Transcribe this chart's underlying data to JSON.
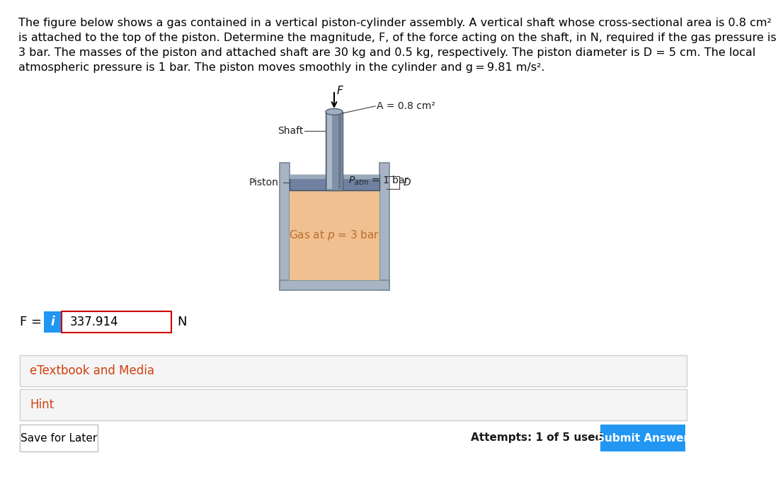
{
  "problem_text_line1": "The figure below shows a gas contained in a vertical piston-cylinder assembly. A vertical shaft whose cross-sectional area is 0.8 cm²",
  "problem_text_line2": "is attached to the top of the piston. Determine the magnitude, F, of the force acting on the shaft, in N, required if the gas pressure is",
  "problem_text_line3": "3 bar. The masses of the piston and attached shaft are 30 kg and 0.5 kg, respectively. The piston diameter is D = 5 cm. The local",
  "problem_text_line4": "atmospheric pressure is 1 bar. The piston moves smoothly in the cylinder and g = 9.81 m/s².",
  "answer_value": "337.914",
  "answer_label": "F =",
  "answer_unit": "N",
  "etextbook_label": "eTextbook and Media",
  "hint_label": "Hint",
  "save_label": "Save for Later",
  "attempts_label": "Attempts: 1 of 5 used",
  "submit_label": "Submit Answer",
  "colors": {
    "background": "#ffffff",
    "problem_text": "#000000",
    "cylinder_wall": "#a8b4c4",
    "cylinder_wall_edge": "#7a8898",
    "piston_dark": "#7080a0",
    "piston_light": "#9aaabb",
    "shaft_dark": "#8090a8",
    "shaft_mid": "#a0b0c0",
    "shaft_light": "#b8c4d0",
    "shaft_edge": "#506070",
    "gas_fill": "#f0c090",
    "gas_text": "#b87030",
    "label_color": "#404040",
    "info_box_bg": "#2196f3",
    "answer_box_border": "#cc0000",
    "button_bg": "#2196f3",
    "button_text": "#ffffff",
    "section_bg": "#f5f5f5",
    "section_border": "#d0d0d0",
    "save_border": "#c0c0c0",
    "ui_orange": "#d04010"
  }
}
